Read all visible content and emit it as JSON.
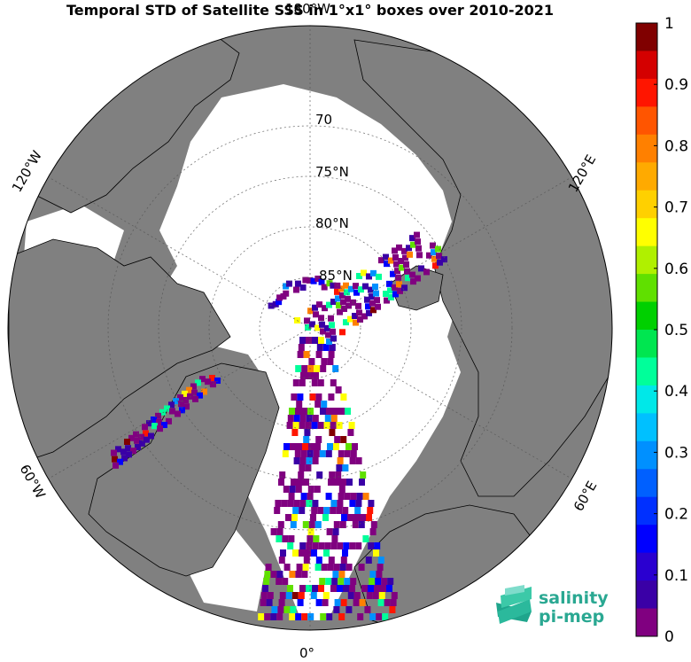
{
  "title": "Temporal STD of Satellite SSS in 1°x1° boxes over 2010-2021",
  "map": {
    "lon_labels": [
      "180°W",
      "120°W",
      "120°E",
      "60°W",
      "60°E",
      "0°"
    ],
    "lat_labels": [
      "70",
      "75°N",
      "80°N",
      "85°N"
    ],
    "land_color": "#808080",
    "ocean_color": "#808080",
    "ice_color": "#ffffff"
  },
  "colorbar": {
    "ticks": [
      "1",
      "0.9",
      "0.8",
      "0.7",
      "0.6",
      "0.5",
      "0.4",
      "0.3",
      "0.2",
      "0.1",
      "0"
    ],
    "colors": [
      "#800080",
      "#3a00a6",
      "#2a00d0",
      "#0000ff",
      "#0030ff",
      "#0060ff",
      "#0090ff",
      "#00c0ff",
      "#00e8e8",
      "#00ff9a",
      "#00e650",
      "#00d000",
      "#60e000",
      "#b0f000",
      "#ffff00",
      "#ffd000",
      "#ffaa00",
      "#ff8000",
      "#ff5500",
      "#ff1500",
      "#d40000",
      "#800000"
    ]
  },
  "logo": {
    "line1": "salinity",
    "line2": "pi-mep"
  }
}
